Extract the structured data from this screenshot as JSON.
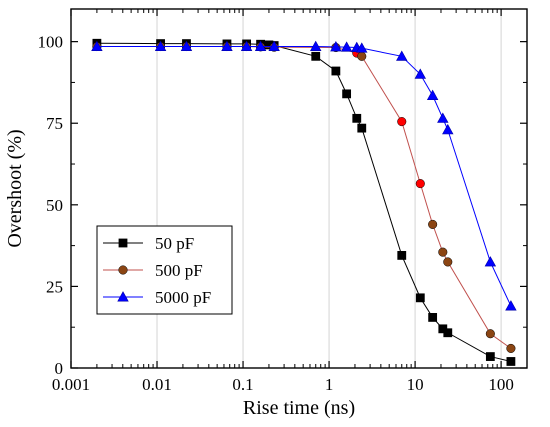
{
  "chart_data": {
    "type": "line",
    "xlabel": "Rise time (ns)",
    "ylabel": "Overshoot (%)",
    "x_scale": "log",
    "xlim": [
      0.001,
      200
    ],
    "ylim": [
      0,
      110
    ],
    "x_ticks": [
      "0.001",
      "0.01",
      "0.1",
      "1",
      "10",
      "100"
    ],
    "y_ticks": [
      "0",
      "25",
      "50",
      "75",
      "100"
    ],
    "grid": "vertical lines at decades",
    "legend_position": "bottom-left",
    "series": [
      {
        "name": "50 pF",
        "color": "#000000",
        "marker": "square",
        "x": [
          0.002,
          0.011,
          0.022,
          0.065,
          0.11,
          0.16,
          0.2,
          0.23,
          0.7,
          1.2,
          1.6,
          2.1,
          2.4,
          7.0,
          11.5,
          16.0,
          21.0,
          24.0,
          75.0,
          130.0
        ],
        "y": [
          99.5,
          99.4,
          99.4,
          99.3,
          99.3,
          99.2,
          99.0,
          98.8,
          95.5,
          91.0,
          84.0,
          76.5,
          73.5,
          34.5,
          21.5,
          15.5,
          12.0,
          10.8,
          3.5,
          2.0
        ]
      },
      {
        "name": "500 pF",
        "color": "#8B4513",
        "marker": "circle",
        "x": [
          0.002,
          0.011,
          0.022,
          0.065,
          0.11,
          0.16,
          0.23,
          1.2,
          2.1,
          2.4,
          7.0,
          11.5,
          16.0,
          21.0,
          24.0,
          75.0,
          130.0
        ],
        "y": [
          98.5,
          98.5,
          98.5,
          98.5,
          98.5,
          98.4,
          98.3,
          98.2,
          96.5,
          95.5,
          75.5,
          56.5,
          44.0,
          35.5,
          32.5,
          10.5,
          6.0
        ]
      },
      {
        "name": "5000 pF",
        "color": "#0000FF",
        "marker": "triangle",
        "x": [
          0.002,
          0.011,
          0.022,
          0.065,
          0.11,
          0.16,
          0.23,
          0.7,
          1.2,
          1.6,
          2.1,
          2.4,
          7.0,
          11.5,
          16.0,
          21.0,
          24.0,
          75.0,
          130.0
        ],
        "y": [
          98.5,
          98.5,
          98.5,
          98.5,
          98.5,
          98.5,
          98.5,
          98.5,
          98.4,
          98.3,
          98.2,
          98.0,
          95.5,
          90.0,
          83.5,
          76.5,
          73.0,
          32.5,
          19.0
        ]
      }
    ],
    "highlights": [
      {
        "series": "500 pF",
        "x": [
          2.1,
          7.0,
          11.5
        ],
        "color": "#ff0000"
      }
    ]
  }
}
